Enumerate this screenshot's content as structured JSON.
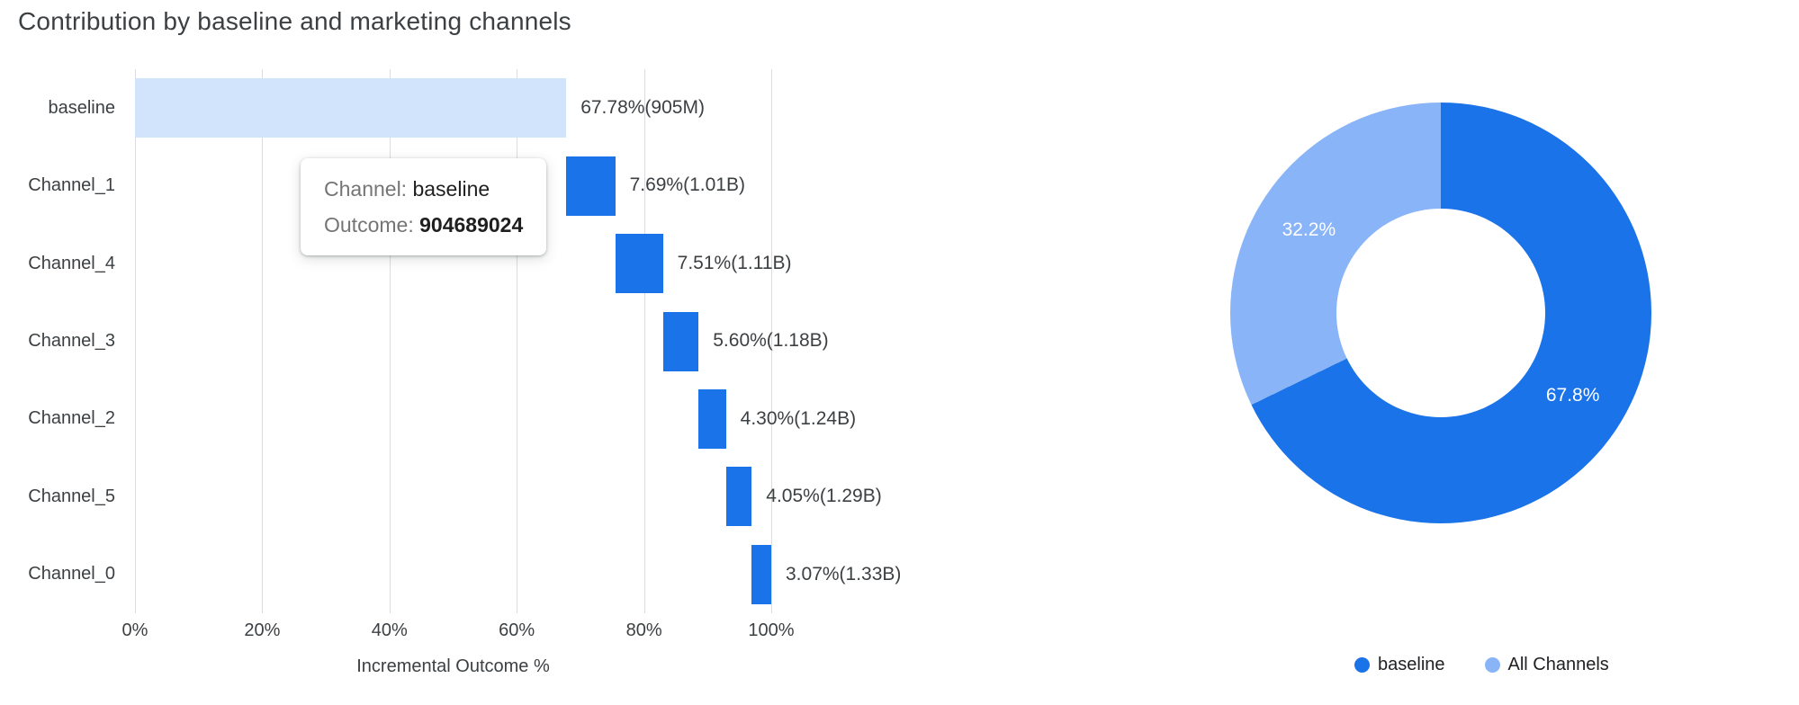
{
  "page": {
    "title": "Contribution by baseline and marketing channels"
  },
  "chart_data": [
    {
      "type": "bar",
      "variant": "horizontal-waterfall",
      "title": "Contribution by baseline and marketing channels",
      "xlabel": "Incremental Outcome %",
      "xlim": [
        0,
        100
      ],
      "x_ticks": [
        "0%",
        "20%",
        "40%",
        "60%",
        "80%",
        "100%"
      ],
      "grid": true,
      "categories": [
        "baseline",
        "Channel_1",
        "Channel_4",
        "Channel_3",
        "Channel_2",
        "Channel_5",
        "Channel_0"
      ],
      "segments": [
        {
          "label": "baseline",
          "start": 0,
          "end": 67.78,
          "value_label": "67.78%(905M)",
          "color": "#d2e3fc"
        },
        {
          "label": "Channel_1",
          "start": 67.78,
          "end": 75.47,
          "value_label": "7.69%(1.01B)",
          "color": "#1a73e8"
        },
        {
          "label": "Channel_4",
          "start": 75.47,
          "end": 82.98,
          "value_label": "7.51%(1.11B)",
          "color": "#1a73e8"
        },
        {
          "label": "Channel_3",
          "start": 82.98,
          "end": 88.58,
          "value_label": "5.60%(1.18B)",
          "color": "#1a73e8"
        },
        {
          "label": "Channel_2",
          "start": 88.58,
          "end": 92.88,
          "value_label": "4.30%(1.24B)",
          "color": "#1a73e8"
        },
        {
          "label": "Channel_5",
          "start": 92.88,
          "end": 96.93,
          "value_label": "4.05%(1.29B)",
          "color": "#1a73e8"
        },
        {
          "label": "Channel_0",
          "start": 96.93,
          "end": 100,
          "value_label": "3.07%(1.33B)",
          "color": "#1a73e8"
        }
      ],
      "tooltip": {
        "channel_key": "Channel:",
        "channel_value": "baseline",
        "outcome_key": "Outcome:",
        "outcome_value": "904689024"
      }
    },
    {
      "type": "pie",
      "variant": "donut",
      "labels": [
        "baseline",
        "All Channels"
      ],
      "values": [
        67.8,
        32.2
      ],
      "value_labels": [
        "67.8%",
        "32.2%"
      ],
      "colors": [
        "#1a73e8",
        "#8ab4f8"
      ],
      "legend_position": "bottom"
    }
  ]
}
